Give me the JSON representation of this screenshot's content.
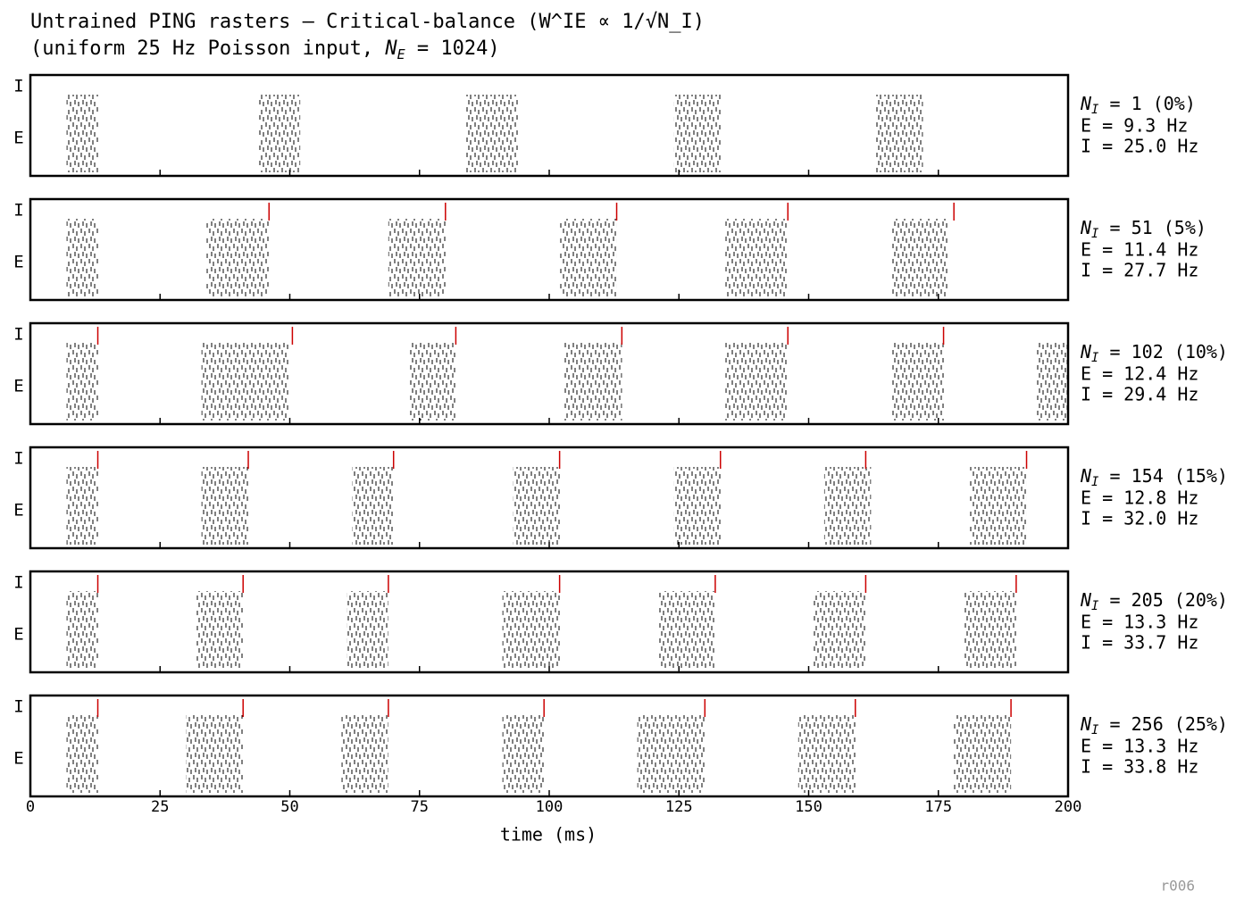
{
  "chart_data": {
    "type": "raster",
    "title": "Untrained PING rasters — Critical-balance (W^IE ∝ 1/√N_I)",
    "subtitle_parts": [
      "(uniform 25 Hz Poisson input, ",
      "N",
      "E",
      " = 1024)"
    ],
    "xlabel": "time (ms)",
    "xlim": [
      0,
      200
    ],
    "xticks": [
      0,
      25,
      50,
      75,
      100,
      125,
      150,
      175,
      200
    ],
    "row_labels": [
      "I",
      "E"
    ],
    "n_symbol": "N",
    "n_sub": "I",
    "e_color": "#000000",
    "i_color": "#cc0000",
    "panels": [
      {
        "n_label": " = 1 (0%)",
        "e_rate": "E = 9.3 Hz",
        "i_rate": "I = 25.0 Hz",
        "e_volleys": [
          [
            7,
            13
          ],
          [
            44,
            52
          ],
          [
            84,
            94
          ],
          [
            124,
            133
          ],
          [
            163,
            172
          ]
        ],
        "i_spikes": []
      },
      {
        "n_label": " = 51 (5%)",
        "e_rate": "E = 11.4 Hz",
        "i_rate": "I = 27.7 Hz",
        "e_volleys": [
          [
            7,
            13
          ],
          [
            34,
            46
          ],
          [
            69,
            80
          ],
          [
            102,
            113
          ],
          [
            134,
            146
          ],
          [
            166,
            177
          ]
        ],
        "i_spikes": [
          46,
          80,
          113,
          146,
          178
        ]
      },
      {
        "n_label": " = 102 (10%)",
        "e_rate": "E = 12.4 Hz",
        "i_rate": "I = 29.4 Hz",
        "e_volleys": [
          [
            7,
            13
          ],
          [
            33,
            50
          ],
          [
            73,
            82
          ],
          [
            103,
            114
          ],
          [
            134,
            146
          ],
          [
            166,
            176
          ],
          [
            194,
            200
          ]
        ],
        "i_spikes": [
          13,
          50.5,
          82,
          114,
          146,
          176
        ]
      },
      {
        "n_label": " = 154 (15%)",
        "e_rate": "E = 12.8 Hz",
        "i_rate": "I = 32.0 Hz",
        "e_volleys": [
          [
            7,
            13
          ],
          [
            33,
            42
          ],
          [
            62,
            70
          ],
          [
            93,
            102
          ],
          [
            124,
            133
          ],
          [
            153,
            162
          ],
          [
            181,
            192
          ]
        ],
        "i_spikes": [
          13,
          42,
          70,
          102,
          133,
          161,
          192
        ]
      },
      {
        "n_label": " = 205 (20%)",
        "e_rate": "E = 13.3 Hz",
        "i_rate": "I = 33.7 Hz",
        "e_volleys": [
          [
            7,
            13
          ],
          [
            32,
            41
          ],
          [
            61,
            69
          ],
          [
            91,
            102
          ],
          [
            121,
            132
          ],
          [
            151,
            161
          ],
          [
            180,
            190
          ]
        ],
        "i_spikes": [
          13,
          41,
          69,
          102,
          132,
          161,
          190
        ]
      },
      {
        "n_label": " = 256 (25%)",
        "e_rate": "E = 13.3 Hz",
        "i_rate": "I = 33.8 Hz",
        "e_volleys": [
          [
            7,
            13
          ],
          [
            30,
            41
          ],
          [
            60,
            69
          ],
          [
            91,
            99
          ],
          [
            117,
            130
          ],
          [
            148,
            159
          ],
          [
            178,
            189
          ]
        ],
        "i_spikes": [
          13,
          41,
          69,
          99,
          130,
          159,
          189
        ]
      }
    ]
  },
  "footer": "r006"
}
